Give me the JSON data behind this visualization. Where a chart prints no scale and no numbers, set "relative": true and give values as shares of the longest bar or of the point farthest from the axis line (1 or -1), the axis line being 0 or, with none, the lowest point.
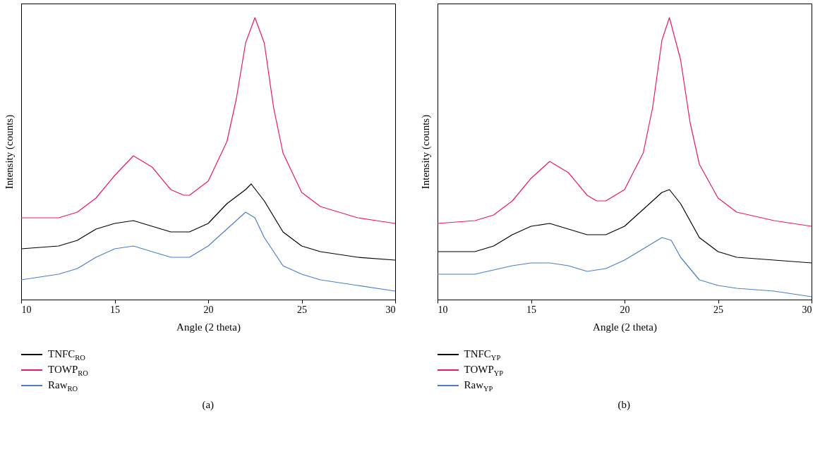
{
  "chart_data": [
    {
      "type": "line",
      "xlabel": "Angle (2 theta)",
      "ylabel": "Intensity (counts)",
      "relative": true,
      "xlim": [
        10,
        30
      ],
      "xticks": [
        10,
        15,
        20,
        25,
        30
      ],
      "legend": "bottom left",
      "annotations": [
        "(a)"
      ],
      "series": [
        {
          "name": "TNFC$_{RO}$",
          "color": "#000000",
          "x": [
            10,
            12,
            13,
            14,
            15,
            16,
            17,
            18,
            19,
            20,
            21,
            22,
            22.3,
            23,
            24,
            25,
            26,
            28,
            30
          ],
          "values": [
            0.18,
            0.19,
            0.21,
            0.25,
            0.27,
            0.28,
            0.26,
            0.24,
            0.24,
            0.27,
            0.34,
            0.39,
            0.41,
            0.35,
            0.24,
            0.19,
            0.17,
            0.15,
            0.14
          ]
        },
        {
          "name": "TOWP$_{RO}$",
          "color": "#e6196e",
          "x": [
            10,
            12,
            13,
            14,
            15,
            16,
            17,
            18,
            18.7,
            19,
            20,
            21,
            21.5,
            22,
            22.5,
            23,
            23.5,
            24,
            25,
            26,
            27,
            28,
            29,
            30
          ],
          "values": [
            0.29,
            0.29,
            0.31,
            0.36,
            0.44,
            0.51,
            0.47,
            0.39,
            0.37,
            0.37,
            0.42,
            0.56,
            0.71,
            0.91,
            1,
            0.91,
            0.68,
            0.52,
            0.38,
            0.33,
            0.31,
            0.29,
            0.28,
            0.27
          ]
        },
        {
          "name": "Raw$_{RO}$",
          "color": "#4a7fc7",
          "x": [
            10,
            12,
            13,
            14,
            15,
            16,
            17,
            18,
            19,
            20,
            21,
            22,
            22.5,
            23,
            24,
            25,
            26,
            28,
            30
          ],
          "values": [
            0.07,
            0.09,
            0.11,
            0.15,
            0.18,
            0.19,
            0.17,
            0.15,
            0.15,
            0.19,
            0.25,
            0.31,
            0.29,
            0.22,
            0.12,
            0.09,
            0.07,
            0.05,
            0.03
          ]
        }
      ]
    },
    {
      "type": "line",
      "xlabel": "Angle (2 theta)",
      "ylabel": "Intensity (counts)",
      "relative": true,
      "xlim": [
        10,
        30
      ],
      "xticks": [
        10,
        15,
        20,
        25,
        30
      ],
      "legend": "bottom left",
      "annotations": [
        "(b)"
      ],
      "series": [
        {
          "name": "TNFC$_{YP}$",
          "color": "#000000",
          "x": [
            10,
            12,
            13,
            14,
            15,
            16,
            17,
            18,
            19,
            20,
            21,
            22,
            22.4,
            23,
            24,
            25,
            26,
            28,
            30
          ],
          "values": [
            0.17,
            0.17,
            0.19,
            0.23,
            0.26,
            0.27,
            0.25,
            0.23,
            0.23,
            0.26,
            0.32,
            0.38,
            0.39,
            0.34,
            0.22,
            0.17,
            0.15,
            0.14,
            0.13
          ]
        },
        {
          "name": "TOWP$_{YP}$",
          "color": "#e6196e",
          "x": [
            10,
            12,
            13,
            14,
            15,
            16,
            17,
            18,
            18.5,
            19,
            20,
            21,
            21.5,
            22,
            22.4,
            23,
            23.5,
            24,
            25,
            26,
            28,
            30
          ],
          "values": [
            0.27,
            0.28,
            0.3,
            0.35,
            0.43,
            0.49,
            0.45,
            0.37,
            0.35,
            0.35,
            0.39,
            0.52,
            0.68,
            0.92,
            1,
            0.85,
            0.63,
            0.48,
            0.36,
            0.31,
            0.28,
            0.26
          ]
        },
        {
          "name": "Raw$_{YP}$",
          "color": "#4a7fc7",
          "x": [
            10,
            12,
            14,
            15,
            16,
            17,
            18,
            19,
            20,
            21,
            22,
            22.5,
            23,
            24,
            25,
            26,
            28,
            30
          ],
          "values": [
            0.09,
            0.09,
            0.12,
            0.13,
            0.13,
            0.12,
            0.1,
            0.11,
            0.14,
            0.18,
            0.22,
            0.21,
            0.15,
            0.07,
            0.05,
            0.04,
            0.03,
            0.01
          ]
        }
      ]
    }
  ]
}
